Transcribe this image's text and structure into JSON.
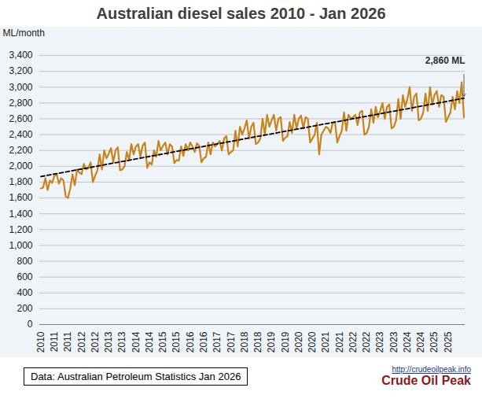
{
  "chart_data": {
    "type": "line",
    "title": "Australian diesel sales 2010 - Jan 2026",
    "y_label": "ML/month",
    "color": "#c8841b",
    "categories": [
      "2010",
      null,
      null,
      null,
      null,
      null,
      "2011",
      null,
      null,
      null,
      null,
      null,
      "2011",
      null,
      null,
      null,
      null,
      null,
      "2012",
      null,
      null,
      null,
      null,
      null,
      "2012",
      null,
      null,
      null,
      null,
      null,
      "2013",
      null,
      null,
      null,
      null,
      null,
      "2013",
      null,
      null,
      null,
      null,
      null,
      "2014",
      null,
      null,
      null,
      null,
      null,
      "2014",
      null,
      null,
      null,
      null,
      null,
      "2015",
      null,
      null,
      null,
      null,
      null,
      "2015",
      null,
      null,
      null,
      null,
      null,
      "2016",
      null,
      null,
      null,
      null,
      null,
      "2016",
      null,
      null,
      null,
      null,
      null,
      "2017",
      null,
      null,
      null,
      null,
      null,
      "2017",
      null,
      null,
      null,
      null,
      null,
      "2018",
      null,
      null,
      null,
      null,
      null,
      "2018",
      null,
      null,
      null,
      null,
      null,
      "2019",
      null,
      null,
      null,
      null,
      null,
      "2019",
      null,
      null,
      null,
      null,
      null,
      "2020",
      null,
      null,
      null,
      null,
      null,
      "2020",
      null,
      null,
      null,
      null,
      null,
      "2021",
      null,
      null,
      null,
      null,
      null,
      "2021",
      null,
      null,
      null,
      null,
      null,
      "2022",
      null,
      null,
      null,
      null,
      null,
      "2022",
      null,
      null,
      null,
      null,
      null,
      "2023",
      null,
      null,
      null,
      null,
      null,
      "2023",
      null,
      null,
      null,
      null,
      null,
      "2024",
      null,
      null,
      null,
      null,
      null,
      "2024",
      null,
      null,
      null,
      null,
      null,
      "2025",
      null,
      null,
      null,
      null,
      null,
      "2025",
      null,
      null,
      null,
      null,
      null,
      null,
      null
    ],
    "values": [
      1720,
      1730,
      1850,
      1700,
      1820,
      1790,
      1880,
      1900,
      1780,
      1850,
      1820,
      1620,
      1600,
      1720,
      1900,
      1760,
      1960,
      1920,
      1900,
      2030,
      1960,
      1980,
      2050,
      1800,
      1880,
      1950,
      2150,
      1960,
      2200,
      2100,
      2160,
      2230,
      2050,
      2200,
      2240,
      1950,
      1960,
      2000,
      2180,
      2080,
      2280,
      2150,
      2250,
      2280,
      2120,
      2260,
      2300,
      1980,
      2050,
      2020,
      2200,
      2120,
      2320,
      2200,
      2260,
      2300,
      2150,
      2280,
      2250,
      2040,
      2080,
      2070,
      2250,
      2130,
      2280,
      2200,
      2300,
      2250,
      2180,
      2290,
      2260,
      2050,
      2100,
      2120,
      2300,
      2150,
      2300,
      2250,
      2280,
      2320,
      2200,
      2350,
      2380,
      2150,
      2180,
      2200,
      2450,
      2250,
      2500,
      2400,
      2480,
      2580,
      2350,
      2500,
      2550,
      2280,
      2300,
      2350,
      2600,
      2400,
      2650,
      2500,
      2580,
      2650,
      2450,
      2600,
      2620,
      2320,
      2360,
      2380,
      2560,
      2420,
      2650,
      2480,
      2600,
      2640,
      2480,
      2620,
      2600,
      2300,
      2350,
      2400,
      2550,
      2150,
      2400,
      2450,
      2500,
      2480,
      2420,
      2550,
      2560,
      2300,
      2380,
      2450,
      2680,
      2450,
      2650,
      2600,
      2620,
      2650,
      2520,
      2680,
      2700,
      2400,
      2420,
      2500,
      2720,
      2550,
      2750,
      2620,
      2700,
      2800,
      2600,
      2750,
      2780,
      2480,
      2500,
      2580,
      2850,
      2600,
      2900,
      2750,
      2850,
      3000,
      2700,
      2880,
      2920,
      2580,
      2600,
      2680,
      2920,
      2700,
      3000,
      2780,
      2900,
      2950,
      2750,
      2900,
      2880,
      2560,
      2620,
      2680,
      2880,
      2720,
      2950,
      2800,
      3060,
      2620
    ],
    "trend": {
      "values": [
        1870,
        2860
      ],
      "color": "#000000",
      "line_style": "dashed"
    },
    "annotation": {
      "text": "2,860 ML",
      "value": 2860
    },
    "ylim": [
      0,
      3400
    ],
    "yticks": [
      0,
      200,
      400,
      600,
      800,
      {
        "value": 1000,
        "label": "1,000"
      },
      {
        "value": 1200,
        "label": "1,200"
      },
      {
        "value": 1400,
        "label": "1,400"
      },
      {
        "value": 1600,
        "label": "1,600"
      },
      {
        "value": 1800,
        "label": "1,800"
      },
      {
        "value": 2000,
        "label": "2,000"
      },
      {
        "value": 2200,
        "label": "2,200"
      },
      {
        "value": 2400,
        "label": "2,400"
      },
      {
        "value": 2600,
        "label": "2,600"
      },
      {
        "value": 2800,
        "label": "2,800"
      },
      {
        "value": 3000,
        "label": "3,000"
      },
      {
        "value": 3200,
        "label": "3,200"
      },
      {
        "value": 3400,
        "label": "3,400"
      }
    ],
    "grid": true,
    "source": "Data: Australian Petroleum Statistics Jan 2026",
    "logo": {
      "url": "http://crudeoilpeak.info",
      "name": "Crude Oil Peak"
    }
  }
}
